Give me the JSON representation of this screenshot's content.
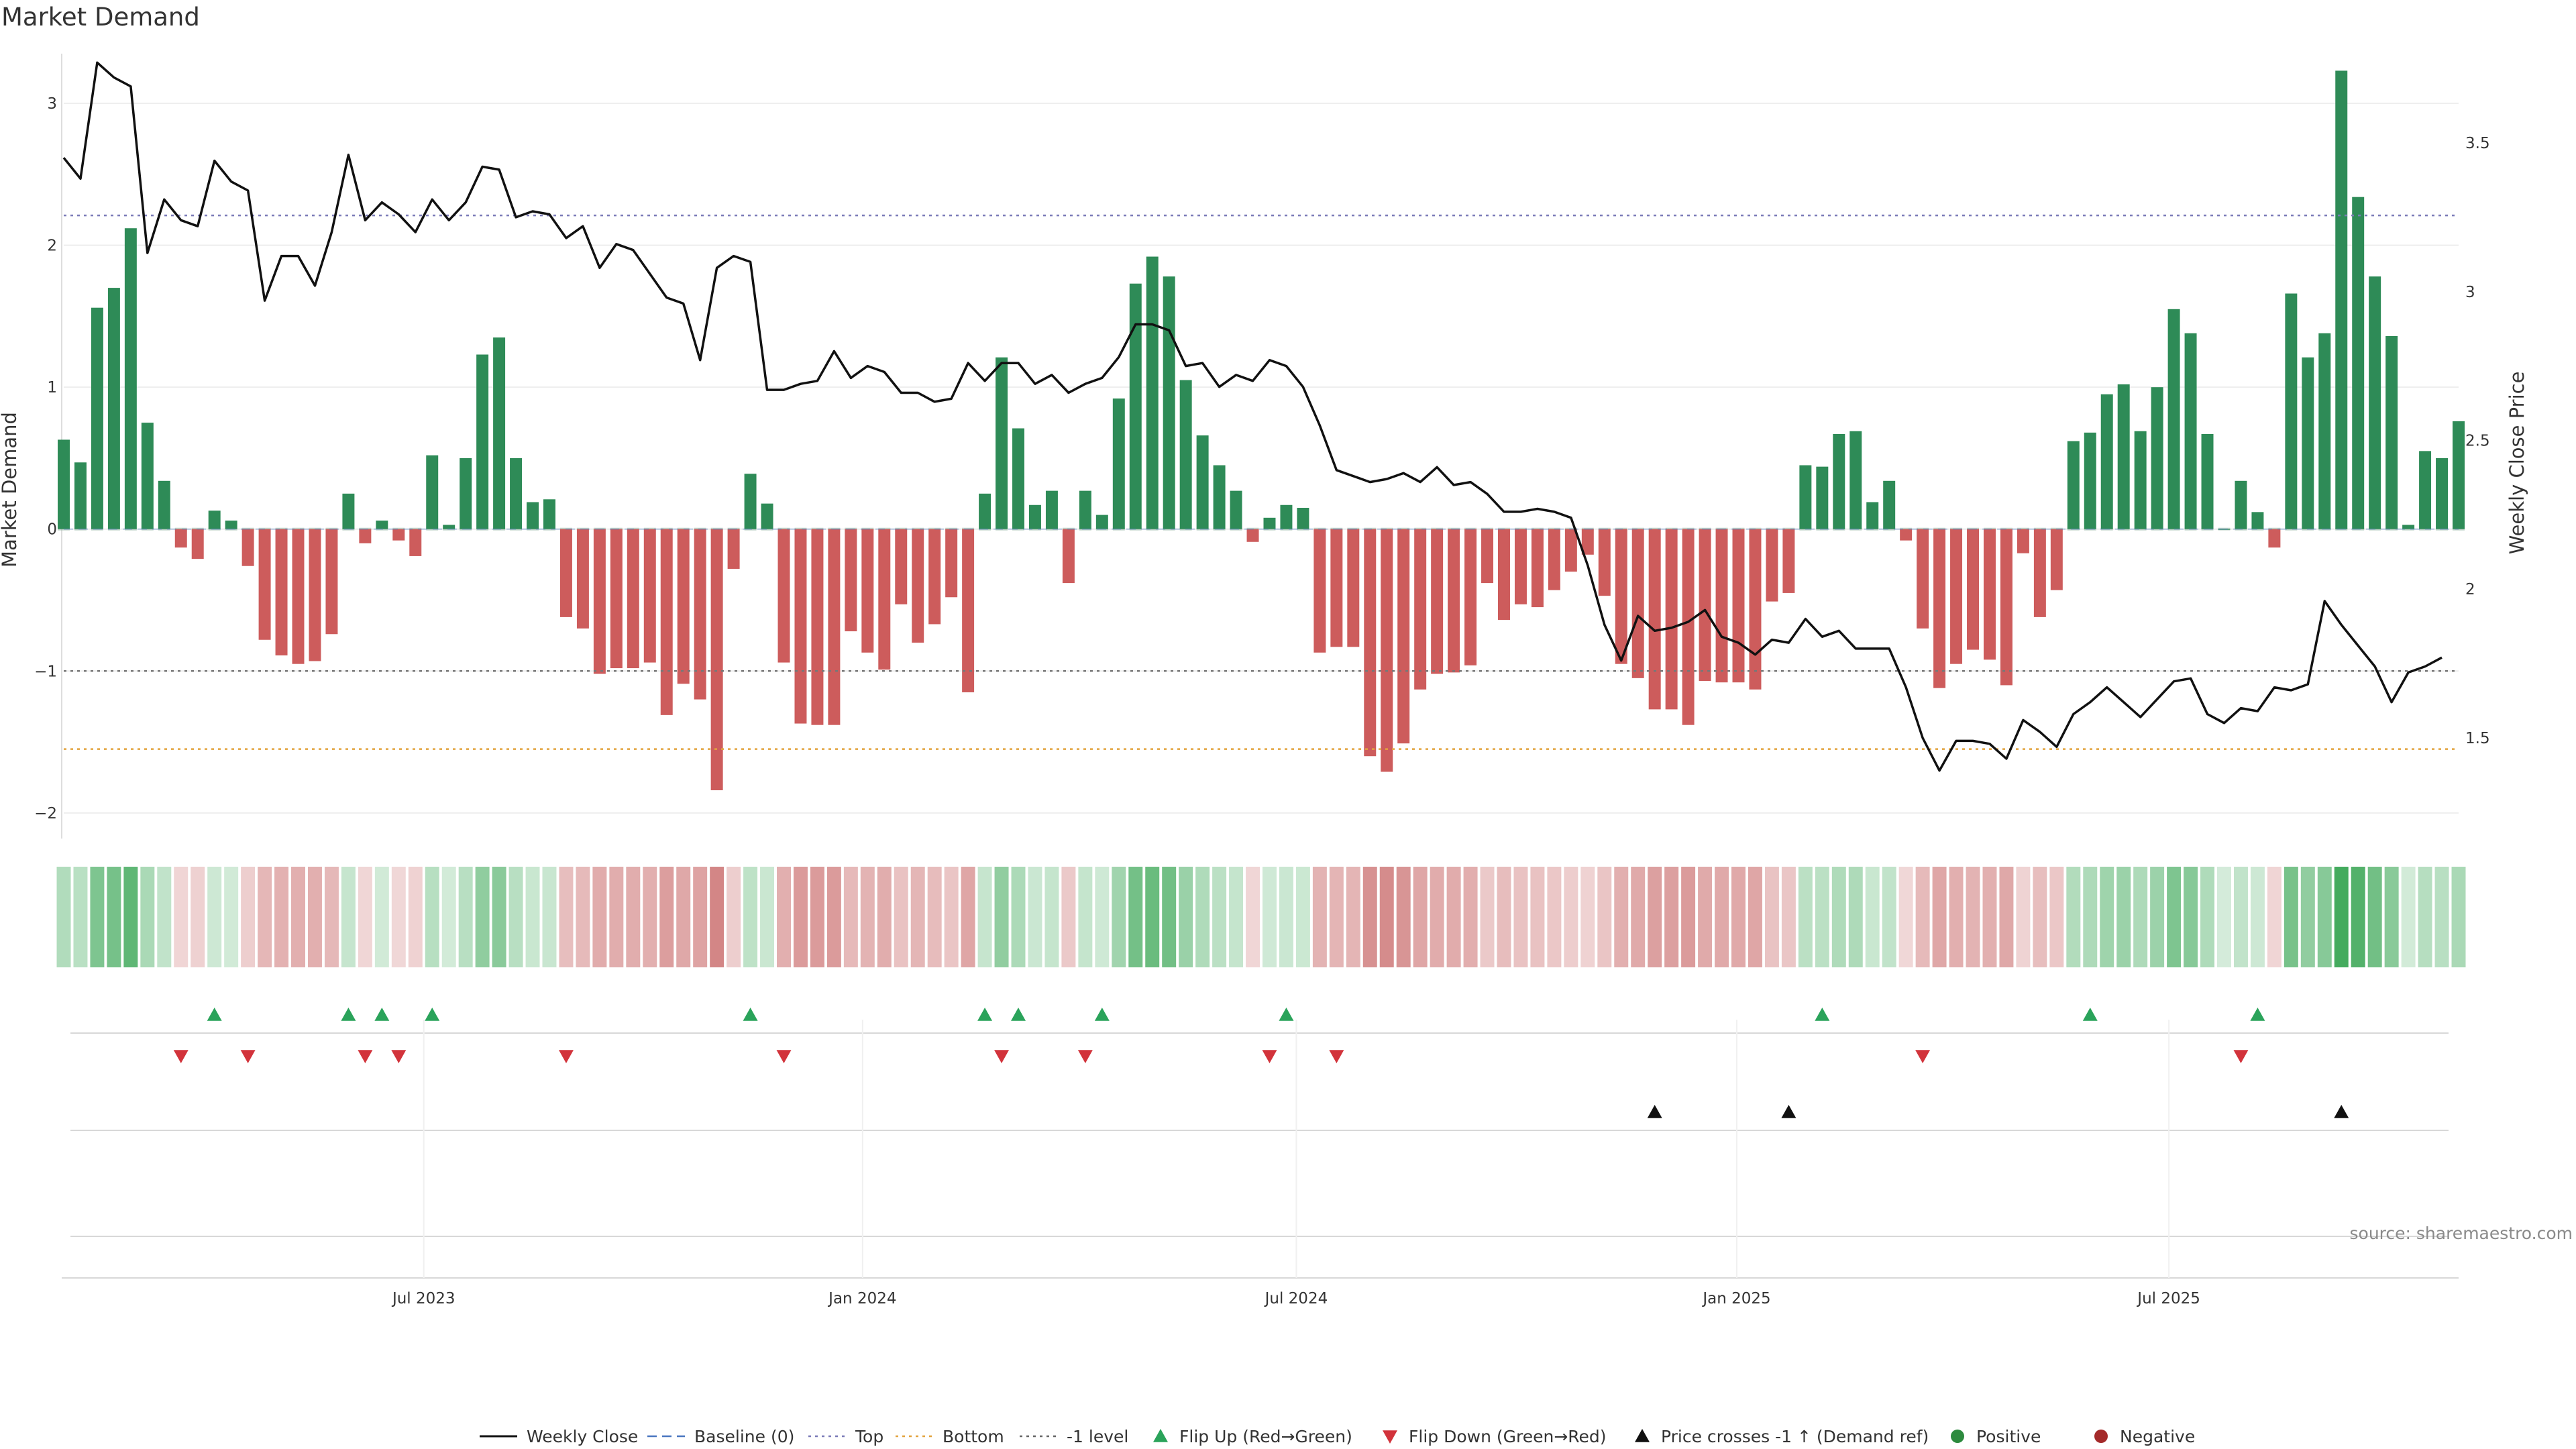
{
  "chart_data": {
    "type": "bar",
    "title": "Market Demand",
    "ylabel": "Market Demand",
    "y2label": "Weekly Close Price",
    "ylim": [
      -2.1,
      3.35
    ],
    "y2lim": [
      1.2,
      3.8
    ],
    "yticks": [
      -2,
      -1,
      0,
      1,
      2,
      3
    ],
    "y2ticks": [
      1.5,
      2,
      2.5,
      3,
      3.5
    ],
    "x_start_week": 0,
    "x_end_week": 143,
    "xticks": [
      {
        "label": "Jul 2023",
        "week": 21.5
      },
      {
        "label": "Jan 2024",
        "week": 47.7
      },
      {
        "label": "Jul 2024",
        "week": 73.6
      },
      {
        "label": "Jan 2025",
        "week": 99.9
      },
      {
        "label": "Jul 2025",
        "week": 125.7
      }
    ],
    "demand": [
      0.63,
      0.47,
      1.56,
      1.7,
      2.12,
      0.75,
      0.34,
      -0.13,
      -0.21,
      0.13,
      0.06,
      -0.26,
      -0.78,
      -0.89,
      -0.95,
      -0.93,
      -0.74,
      0.25,
      -0.1,
      0.06,
      -0.08,
      -0.19,
      0.52,
      0.03,
      0.5,
      1.23,
      1.35,
      0.5,
      0.19,
      0.21,
      -0.62,
      -0.7,
      -1.02,
      -0.98,
      -0.98,
      -0.94,
      -1.31,
      -1.09,
      -1.2,
      -1.84,
      -0.28,
      0.39,
      0.18,
      -0.94,
      -1.37,
      -1.38,
      -1.38,
      -0.72,
      -0.87,
      -0.99,
      -0.53,
      -0.8,
      -0.67,
      -0.48,
      -1.15,
      0.25,
      1.21,
      0.71,
      0.17,
      0.27,
      -0.38,
      0.27,
      0.1,
      0.92,
      1.73,
      1.92,
      1.78,
      1.05,
      0.66,
      0.45,
      0.27,
      -0.09,
      0.08,
      0.17,
      0.15,
      -0.87,
      -0.83,
      -0.83,
      -1.6,
      -1.71,
      -1.51,
      -1.13,
      -1.02,
      -1.01,
      -0.96,
      -0.38,
      -0.64,
      -0.53,
      -0.55,
      -0.43,
      -0.3,
      -0.18,
      -0.47,
      -0.95,
      -1.05,
      -1.27,
      -1.27,
      -1.38,
      -1.07,
      -1.08,
      -1.08,
      -1.13,
      -0.51,
      -0.45,
      0.45,
      0.44,
      0.67,
      0.69,
      0.19,
      0.34,
      -0.08,
      -0.7,
      -1.12,
      -0.95,
      -0.85,
      -0.92,
      -1.1,
      -0.17,
      -0.62,
      -0.43,
      0.62,
      0.68,
      0.95,
      1.02,
      0.69,
      1.0,
      1.55,
      1.38,
      0.67,
      0.0,
      0.34,
      0.12,
      -0.13,
      1.66,
      1.21,
      1.38,
      3.23,
      2.34,
      1.78,
      1.36,
      0.03,
      0.55,
      0.5,
      0.76
    ],
    "price": [
      3.45,
      3.38,
      3.77,
      3.72,
      3.69,
      3.13,
      3.31,
      3.24,
      3.22,
      3.44,
      3.37,
      3.34,
      2.97,
      3.12,
      3.12,
      3.02,
      3.2,
      3.46,
      3.24,
      3.3,
      3.26,
      3.2,
      3.31,
      3.24,
      3.3,
      3.42,
      3.41,
      3.25,
      3.27,
      3.26,
      3.18,
      3.22,
      3.08,
      3.16,
      3.14,
      3.06,
      2.98,
      2.96,
      2.77,
      3.08,
      3.12,
      3.1,
      2.67,
      2.67,
      2.69,
      2.7,
      2.8,
      2.71,
      2.75,
      2.73,
      2.66,
      2.66,
      2.63,
      2.64,
      2.76,
      2.7,
      2.76,
      2.76,
      2.69,
      2.72,
      2.66,
      2.69,
      2.71,
      2.78,
      2.89,
      2.89,
      2.87,
      2.75,
      2.76,
      2.68,
      2.72,
      2.7,
      2.77,
      2.75,
      2.68,
      2.55,
      2.4,
      2.38,
      2.36,
      2.37,
      2.39,
      2.36,
      2.41,
      2.35,
      2.36,
      2.32,
      2.26,
      2.26,
      2.27,
      2.26,
      2.24,
      2.08,
      1.88,
      1.76,
      1.91,
      1.86,
      1.87,
      1.89,
      1.93,
      1.84,
      1.82,
      1.78,
      1.83,
      1.82,
      1.9,
      1.84,
      1.86,
      1.8,
      1.8,
      1.8,
      1.67,
      1.5,
      1.39,
      1.49,
      1.49,
      1.48,
      1.43,
      1.56,
      1.52,
      1.47,
      1.58,
      1.62,
      1.67,
      1.62,
      1.57,
      1.63,
      1.69,
      1.7,
      1.58,
      1.55,
      1.6,
      1.59,
      1.67,
      1.66,
      1.68,
      1.96,
      1.88,
      1.81,
      1.74,
      1.62,
      1.72,
      1.74,
      1.77
    ],
    "reference_lines": [
      {
        "name": "Top",
        "value": 2.21,
        "color": "#7b7bb8"
      },
      {
        "name": "-1 level",
        "value": -1.0,
        "color": "#777777"
      },
      {
        "name": "Bottom",
        "value": -1.55,
        "color": "#e2a33d"
      }
    ],
    "flip_up_weeks": [
      9,
      17,
      19,
      22,
      41,
      55,
      57,
      62,
      73,
      105,
      121,
      131
    ],
    "flip_down_weeks": [
      7,
      11,
      18,
      20,
      30,
      43,
      56,
      61,
      72,
      76,
      111,
      130
    ],
    "price_cross_weeks": [
      95,
      103,
      136
    ],
    "legend": [
      {
        "label": "Weekly Close",
        "kind": "line-solid",
        "color": "#111111"
      },
      {
        "label": "Baseline (0)",
        "kind": "line-dash",
        "color": "#4a77c0"
      },
      {
        "label": "Top",
        "kind": "line-dot",
        "color": "#7b7bb8"
      },
      {
        "label": "Bottom",
        "kind": "line-dot",
        "color": "#e2a33d"
      },
      {
        "label": "-1 level",
        "kind": "line-dot",
        "color": "#666666"
      },
      {
        "label": "Flip Up (Red→Green)",
        "kind": "tri-up",
        "color": "#2aa35a"
      },
      {
        "label": "Flip Down (Green→Red)",
        "kind": "tri-down",
        "color": "#d2333b"
      },
      {
        "label": "Price crosses -1 ↑ (Demand ref)",
        "kind": "tri-up",
        "color": "#111111"
      },
      {
        "label": "Positive",
        "kind": "dot",
        "color": "#2d8a3e"
      },
      {
        "label": "Negative",
        "kind": "dot",
        "color": "#a42a2a"
      }
    ],
    "source": "source: sharemaestro.com"
  },
  "colors": {
    "positive_bar": "#2e8b57",
    "negative_bar": "#cd5c5c",
    "heat_positive": "#3aa655",
    "heat_negative": "#c35a5a",
    "price_line": "#111111",
    "baseline": "#4a77c0",
    "grid": "#eeeeee"
  }
}
